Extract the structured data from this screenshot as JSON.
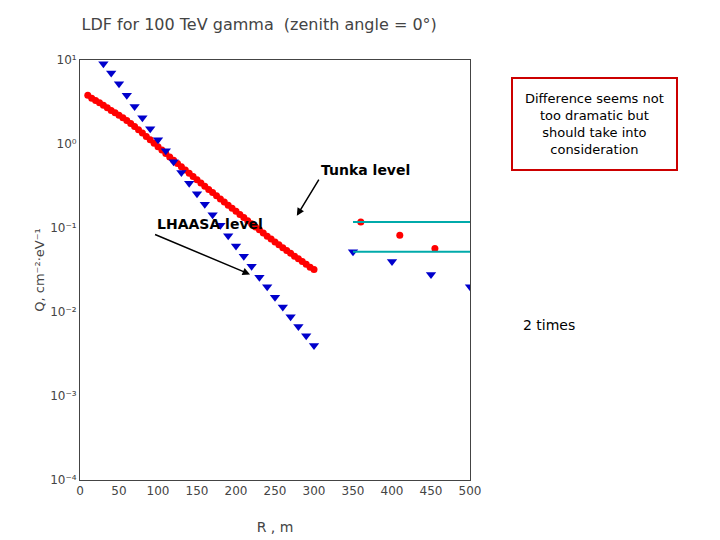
{
  "chart_data": {
    "type": "scatter",
    "title": "LDF for 100 TeV gamma  (zenith angle = 0°)",
    "xlabel": "R , m",
    "ylabel": "Q, cm⁻²·eV⁻¹",
    "series": [
      {
        "type": "scatter",
        "color": "#ff0000",
        "marker": "circle",
        "x": [
          10,
          15,
          20,
          25,
          30,
          35,
          40,
          45,
          50,
          55,
          60,
          65,
          70,
          75,
          80,
          85,
          90,
          95,
          100,
          105,
          110,
          115,
          120,
          125,
          130,
          135,
          140,
          145,
          150,
          155,
          160,
          165,
          170,
          175,
          180,
          185,
          190,
          195,
          200,
          205,
          210,
          215,
          220,
          225,
          230,
          235,
          240,
          245,
          250,
          255,
          260,
          265,
          270,
          275,
          280,
          285,
          290,
          295,
          300,
          360,
          410,
          455
        ],
        "values": [
          3.8,
          3.5,
          3.3,
          3.1,
          2.9,
          2.7,
          2.5,
          2.35,
          2.2,
          2.05,
          1.9,
          1.76,
          1.62,
          1.48,
          1.35,
          1.23,
          1.12,
          1.02,
          0.93,
          0.85,
          0.77,
          0.7,
          0.64,
          0.585,
          0.535,
          0.49,
          0.448,
          0.41,
          0.375,
          0.343,
          0.314,
          0.288,
          0.264,
          0.242,
          0.222,
          0.204,
          0.187,
          0.172,
          0.158,
          0.145,
          0.133,
          0.122,
          0.112,
          0.103,
          0.095,
          0.087,
          0.08,
          0.074,
          0.068,
          0.063,
          0.058,
          0.054,
          0.05,
          0.046,
          0.043,
          0.04,
          0.037,
          0.034,
          0.032,
          0.118,
          0.082,
          0.057
        ]
      },
      {
        "type": "scatter",
        "color": "#0000cc",
        "marker": "triangle-down",
        "x": [
          30,
          40,
          50,
          60,
          70,
          80,
          90,
          100,
          110,
          120,
          130,
          140,
          150,
          160,
          170,
          180,
          190,
          200,
          210,
          220,
          230,
          240,
          250,
          260,
          270,
          280,
          290,
          300,
          350,
          400,
          450,
          500
        ],
        "values": [
          9.0,
          7.0,
          5.2,
          3.8,
          2.8,
          2.05,
          1.52,
          1.12,
          0.83,
          0.615,
          0.458,
          0.342,
          0.256,
          0.192,
          0.144,
          0.108,
          0.081,
          0.061,
          0.046,
          0.035,
          0.026,
          0.02,
          0.015,
          0.0115,
          0.0088,
          0.0067,
          0.0052,
          0.004,
          0.052,
          0.04,
          0.028,
          0.02
        ]
      },
      {
        "type": "line",
        "color": "#00aaaa",
        "line_style": "solid",
        "x": [
          350,
          500
        ],
        "values": [
          0.118,
          0.118
        ]
      },
      {
        "type": "line",
        "color": "#00aaaa",
        "line_style": "solid",
        "x": [
          350,
          500
        ],
        "values": [
          0.052,
          0.052
        ]
      }
    ],
    "xlim": [
      0,
      500
    ],
    "xticks": [
      0,
      50,
      100,
      150,
      200,
      250,
      300,
      350,
      400,
      450,
      500
    ],
    "ylim": [
      0.0001,
      10
    ],
    "yticks": [
      {
        "value": 0.0001,
        "label": "10⁻⁴"
      },
      {
        "value": 0.001,
        "label": "10⁻³"
      },
      {
        "value": 0.01,
        "label": "10⁻²"
      },
      {
        "value": 0.1,
        "label": "10⁻¹"
      },
      {
        "value": 1,
        "label": "10⁰"
      },
      {
        "value": 10,
        "label": "10¹"
      }
    ],
    "log": "y",
    "grid": false,
    "annotations": [
      {
        "text": "Tunka level",
        "x": 278,
        "y": 0.14
      },
      {
        "text": "LHAASA level",
        "x": 218,
        "y": 0.028
      },
      {
        "text": "Difference seems not\ntoo dramatic but\nshould take into\nconsideration",
        "color": "#cc0000"
      },
      {
        "text": "2 times"
      }
    ]
  }
}
